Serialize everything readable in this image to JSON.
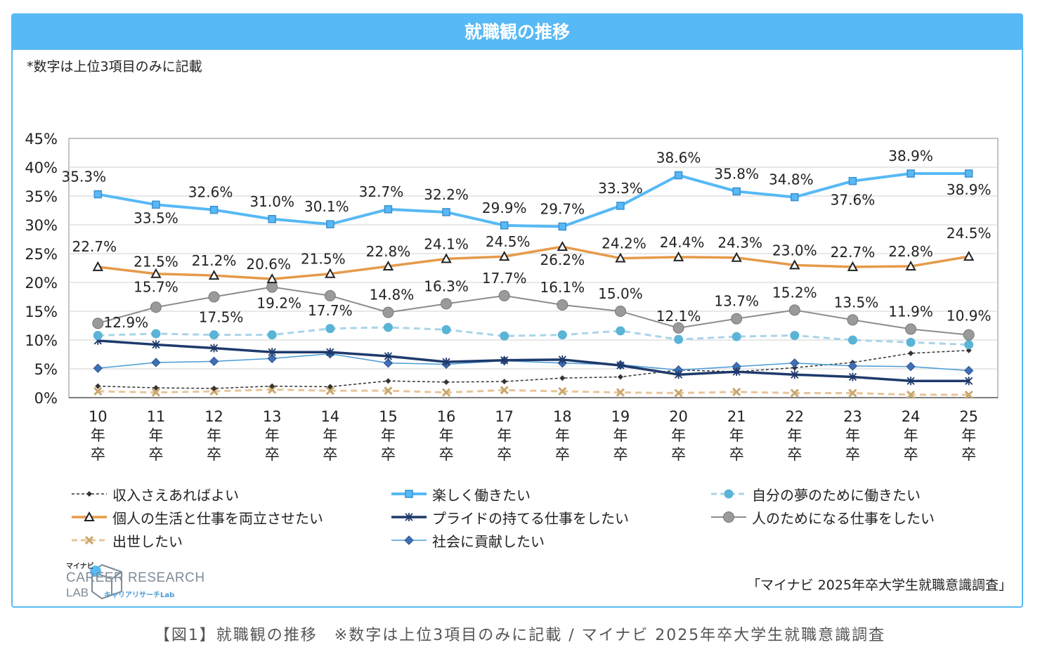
{
  "header": {
    "title": "就職観の推移"
  },
  "note": "*数字は上位3項目のみに記載",
  "source": "「マイナビ 2025年卒大学生就職意識調査」",
  "caption": "【図1】就職観の推移　※数字は上位3項目のみに記載 / マイナビ 2025年卒大学生就職意識調査",
  "logo": {
    "small": "マイナビ",
    "main": "CAREER RESEARCH",
    "lab": "LAB",
    "kana": "キャリアリサーチLab"
  },
  "chart_data": {
    "type": "line",
    "categories": [
      "10\n年\n卒",
      "11\n年\n卒",
      "12\n年\n卒",
      "13\n年\n卒",
      "14\n年\n卒",
      "15\n年\n卒",
      "16\n年\n卒",
      "17\n年\n卒",
      "18\n年\n卒",
      "19\n年\n卒",
      "20\n年\n卒",
      "21\n年\n卒",
      "22\n年\n卒",
      "23\n年\n卒",
      "24\n年\n卒",
      "25\n年\n卒"
    ],
    "ylim": [
      0,
      45
    ],
    "yticks": [
      "0%",
      "5%",
      "10%",
      "15%",
      "20%",
      "25%",
      "30%",
      "35%",
      "40%",
      "45%"
    ],
    "grid": true,
    "legend_position": "bottom",
    "series": [
      {
        "name": "収入さえあればよい",
        "color": "#333333",
        "marker": "diamond",
        "style": "dashed",
        "width": 1.5,
        "values": [
          2.0,
          1.7,
          1.6,
          2.0,
          1.9,
          2.9,
          2.7,
          2.8,
          3.4,
          3.6,
          4.8,
          4.5,
          5.2,
          6.1,
          7.7,
          8.2
        ],
        "labels": false
      },
      {
        "name": "楽しく働きたい",
        "color": "#57b9f5",
        "marker": "square",
        "style": "solid",
        "width": 4,
        "values": [
          35.3,
          33.5,
          32.6,
          31.0,
          30.1,
          32.7,
          32.2,
          29.9,
          29.7,
          33.3,
          38.6,
          35.8,
          34.8,
          37.6,
          38.9,
          38.9
        ],
        "labels": true
      },
      {
        "name": "自分の夢のために働きたい",
        "color": "#a9d4ea",
        "marker": "circle-teal",
        "style": "dashed",
        "width": 3,
        "values": [
          10.8,
          11.1,
          10.9,
          10.9,
          12.0,
          12.2,
          11.8,
          10.7,
          10.9,
          11.6,
          10.1,
          10.6,
          10.8,
          10.0,
          9.6,
          9.2
        ],
        "labels": false
      },
      {
        "name": "個人の生活と仕事を両立させたい",
        "color": "#e69a4a",
        "marker": "triangle",
        "style": "solid",
        "width": 3.5,
        "values": [
          22.7,
          21.5,
          21.2,
          20.6,
          21.5,
          22.8,
          24.1,
          24.5,
          26.2,
          24.2,
          24.4,
          24.3,
          23.0,
          22.7,
          22.8,
          24.5
        ],
        "labels": true
      },
      {
        "name": "プライドの持てる仕事をしたい",
        "color": "#1e3a6b",
        "marker": "star",
        "style": "solid",
        "width": 3.5,
        "values": [
          9.9,
          9.2,
          8.6,
          7.9,
          7.9,
          7.2,
          6.2,
          6.5,
          6.6,
          5.6,
          4.0,
          4.5,
          4.0,
          3.6,
          2.9,
          2.9
        ],
        "labels": false
      },
      {
        "name": "人のためになる仕事をしたい",
        "color": "#8c8c8c",
        "marker": "circle-gray",
        "style": "solid",
        "width": 2,
        "values": [
          12.9,
          15.7,
          17.5,
          19.2,
          17.7,
          14.8,
          16.3,
          17.7,
          16.1,
          15.0,
          12.1,
          13.7,
          15.2,
          13.5,
          11.9,
          10.9
        ],
        "labels": true
      },
      {
        "name": "出世したい",
        "color": "#e8c49a",
        "marker": "x",
        "style": "dashed",
        "width": 3,
        "values": [
          1.1,
          0.9,
          1.1,
          1.4,
          1.2,
          1.2,
          0.9,
          1.3,
          1.1,
          0.9,
          0.8,
          1.0,
          0.8,
          0.8,
          0.5,
          0.5
        ],
        "labels": false
      },
      {
        "name": "社会に貢献したい",
        "color": "#4a9bd5",
        "marker": "diamond-blue",
        "style": "solid",
        "width": 1.5,
        "values": [
          5.1,
          6.1,
          6.3,
          6.8,
          7.6,
          6.0,
          5.8,
          6.4,
          6.0,
          5.7,
          4.8,
          5.4,
          6.0,
          5.5,
          5.4,
          4.7
        ],
        "labels": false
      }
    ],
    "data_labels": {
      "楽しく働きたい": [
        "35.3%",
        "33.5%",
        "32.6%",
        "31.0%",
        "30.1%",
        "32.7%",
        "32.2%",
        "29.9%",
        "29.7%",
        "33.3%",
        "38.6%",
        "35.8%",
        "34.8%",
        "37.6%",
        "38.9%",
        "38.9%"
      ],
      "個人の生活と仕事を両立させたい": [
        "22.7%",
        "21.5%",
        "21.2%",
        "20.6%",
        "21.5%",
        "22.8%",
        "24.1%",
        "24.5%",
        "26.2%",
        "24.2%",
        "24.4%",
        "24.3%",
        "23.0%",
        "22.7%",
        "22.8%",
        "24.5%"
      ],
      "人のためになる仕事をしたい": [
        "12.9%",
        "15.7%",
        "17.5%",
        "19.2%",
        "17.7%",
        "14.8%",
        "16.3%",
        "17.7%",
        "16.1%",
        "15.0%",
        "12.1%",
        "13.7%",
        "15.2%",
        "13.5%",
        "11.9%",
        "10.9%"
      ]
    }
  }
}
